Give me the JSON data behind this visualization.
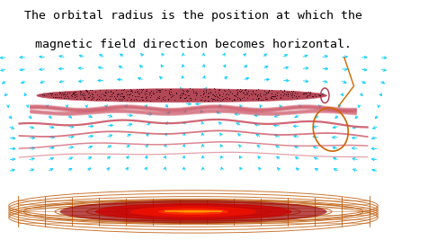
{
  "bg_color": "#000000",
  "white_bg": "#ffffff",
  "text_color": "#000000",
  "arrow_color": "#00CCFF",
  "trajectory_color": "#CC5566",
  "annotation_color": "#CC6600",
  "wireframe_color": "#BB5500",
  "disk_face": "#AA3344",
  "disk_edge": "#CC5566",
  "red_glow1": "#FF0000",
  "red_glow2": "#CC0000",
  "title_line1": "The orbital radius is the position at which the",
  "title_line2": "magnetic field direction becomes horizontal.",
  "title_fontsize": 9.5,
  "fig_width": 4.86,
  "fig_height": 2.77
}
